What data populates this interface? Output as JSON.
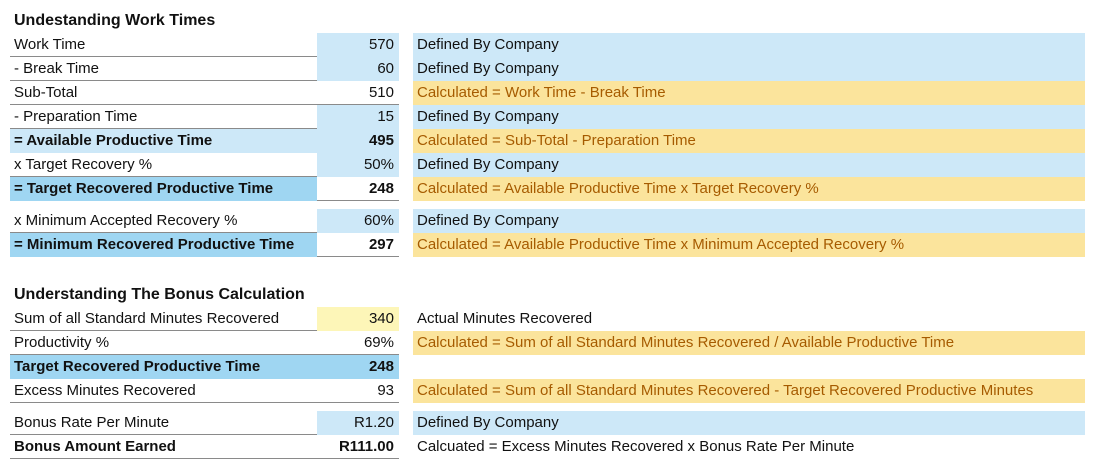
{
  "section1": {
    "title": "Undestanding Work Times",
    "rows": [
      {
        "label": "Work Time",
        "value": "570",
        "desc": "Defined By Company"
      },
      {
        "label": " - Break Time",
        "value": "60",
        "desc": "Defined By Company"
      },
      {
        "label": "Sub-Total",
        "value": "510",
        "desc": "Calculated = Work Time - Break Time"
      },
      {
        "label": " - Preparation Time",
        "value": "15",
        "desc": "Defined By Company"
      },
      {
        "label": "= Available Productive Time",
        "value": "495",
        "desc": "Calculated = Sub-Total - Preparation Time"
      },
      {
        "label": "x Target Recovery %",
        "value": "50%",
        "desc": "Defined By Company"
      },
      {
        "label": "= Target Recovered Productive Time",
        "value": "248",
        "desc": "Calculated = Available Productive Time x Target Recovery %"
      },
      {
        "label": "x Minimum Accepted Recovery %",
        "value": "60%",
        "desc": "Defined By Company"
      },
      {
        "label": "= Minimum Recovered Productive Time",
        "value": "297",
        "desc": "Calculated = Available Productive Time x Minimum Accepted Recovery %"
      }
    ]
  },
  "section2": {
    "title": "Understanding The Bonus Calculation",
    "rows": [
      {
        "label": "Sum of all Standard Minutes Recovered",
        "value": "340",
        "desc": "Actual Minutes Recovered"
      },
      {
        "label": "Productivity %",
        "value": "69%",
        "desc": "Calculated = Sum of all Standard Minutes Recovered / Available Productive Time"
      },
      {
        "label": "Target Recovered Productive Time",
        "value": "248",
        "desc": ""
      },
      {
        "label": "Excess Minutes Recovered",
        "value": "93",
        "desc": "Calculated = Sum of all Standard Minutes Recovered - Target Recovered Productive Minutes"
      },
      {
        "label": "Bonus Rate Per Minute",
        "value": "R1.20",
        "desc": "Defined By Company"
      },
      {
        "label": "Bonus Amount Earned",
        "value": "R111.00",
        "desc": "Calcuated = Excess Minutes Recovered x Bonus Rate Per Minute"
      }
    ]
  }
}
